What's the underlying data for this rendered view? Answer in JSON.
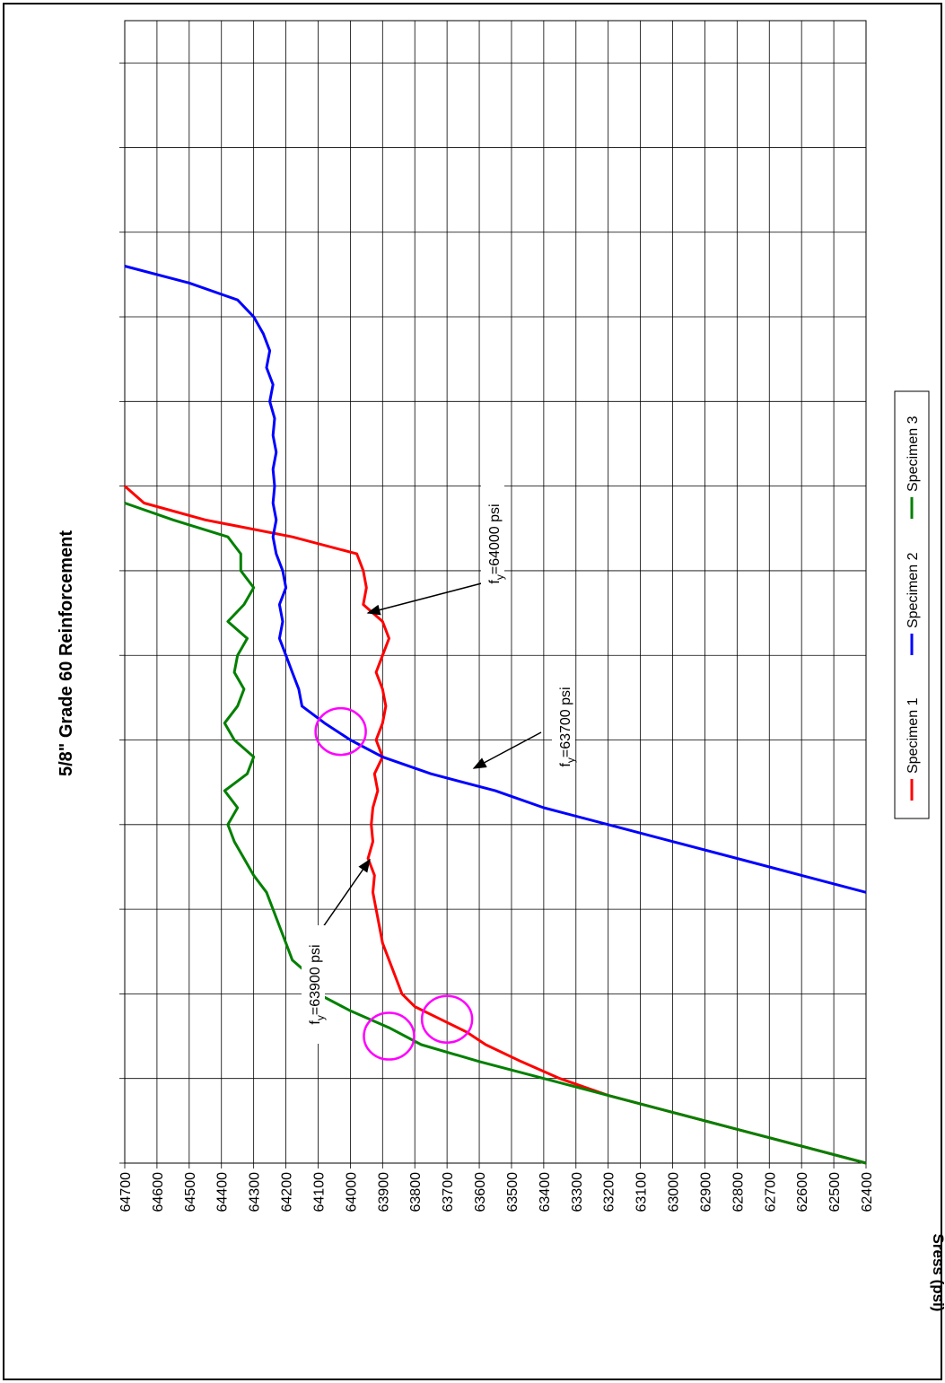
{
  "chart_data": {
    "type": "line",
    "title": "5/8\" Grade 60 Reinforcement",
    "ylabel": "Sress (psi)",
    "xlabel": "",
    "orientation": "rotated-90-clockwise",
    "ylim": [
      62400,
      64700
    ],
    "yticks": [
      64700,
      64600,
      64500,
      64400,
      64300,
      64200,
      64100,
      64000,
      63900,
      63800,
      63700,
      63600,
      63500,
      63400,
      63300,
      63200,
      63100,
      63000,
      62900,
      62800,
      62700,
      62600,
      62500,
      62400
    ],
    "grid": true,
    "legend_position": "bottom",
    "series": [
      {
        "name": "Specimen 1",
        "color": "#ff0000",
        "points": [
          [
            0.0,
            62400
          ],
          [
            0.2,
            62600
          ],
          [
            0.4,
            62800
          ],
          [
            0.6,
            63000
          ],
          [
            0.8,
            63200
          ],
          [
            1.0,
            63350
          ],
          [
            1.2,
            63470
          ],
          [
            1.4,
            63580
          ],
          [
            1.55,
            63640
          ],
          [
            1.7,
            63720
          ],
          [
            1.85,
            63800
          ],
          [
            2.0,
            63840
          ],
          [
            2.2,
            63860
          ],
          [
            2.4,
            63880
          ],
          [
            2.6,
            63900
          ],
          [
            2.8,
            63910
          ],
          [
            3.0,
            63920
          ],
          [
            3.2,
            63930
          ],
          [
            3.4,
            63925
          ],
          [
            3.6,
            63945
          ],
          [
            3.8,
            63930
          ],
          [
            4.0,
            63935
          ],
          [
            4.2,
            63930
          ],
          [
            4.4,
            63915
          ],
          [
            4.6,
            63925
          ],
          [
            4.8,
            63900
          ],
          [
            5.0,
            63920
          ],
          [
            5.2,
            63900
          ],
          [
            5.4,
            63890
          ],
          [
            5.6,
            63900
          ],
          [
            5.8,
            63920
          ],
          [
            6.0,
            63900
          ],
          [
            6.2,
            63880
          ],
          [
            6.4,
            63900
          ],
          [
            6.6,
            63960
          ],
          [
            6.8,
            63950
          ],
          [
            7.0,
            63960
          ],
          [
            7.2,
            63980
          ],
          [
            7.4,
            64180
          ],
          [
            7.6,
            64450
          ],
          [
            7.8,
            64640
          ],
          [
            8.0,
            64700
          ]
        ]
      },
      {
        "name": "Specimen 2",
        "color": "#0000ff",
        "points": [
          [
            3.2,
            62400
          ],
          [
            3.4,
            62600
          ],
          [
            3.6,
            62800
          ],
          [
            3.8,
            63000
          ],
          [
            4.0,
            63200
          ],
          [
            4.2,
            63400
          ],
          [
            4.4,
            63550
          ],
          [
            4.6,
            63750
          ],
          [
            4.8,
            63900
          ],
          [
            5.0,
            64000
          ],
          [
            5.2,
            64080
          ],
          [
            5.4,
            64150
          ],
          [
            5.6,
            64160
          ],
          [
            5.8,
            64180
          ],
          [
            6.0,
            64200
          ],
          [
            6.2,
            64220
          ],
          [
            6.4,
            64210
          ],
          [
            6.6,
            64220
          ],
          [
            6.8,
            64200
          ],
          [
            7.0,
            64210
          ],
          [
            7.2,
            64230
          ],
          [
            7.4,
            64240
          ],
          [
            7.6,
            64230
          ],
          [
            7.8,
            64240
          ],
          [
            8.0,
            64235
          ],
          [
            8.2,
            64240
          ],
          [
            8.4,
            64230
          ],
          [
            8.6,
            64240
          ],
          [
            8.8,
            64235
          ],
          [
            9.0,
            64250
          ],
          [
            9.2,
            64240
          ],
          [
            9.4,
            64260
          ],
          [
            9.6,
            64250
          ],
          [
            9.8,
            64270
          ],
          [
            10.0,
            64300
          ],
          [
            10.2,
            64350
          ],
          [
            10.4,
            64500
          ],
          [
            10.6,
            64700
          ]
        ]
      },
      {
        "name": "Specimen 3",
        "color": "#008000",
        "points": [
          [
            0.0,
            62400
          ],
          [
            0.2,
            62600
          ],
          [
            0.4,
            62800
          ],
          [
            0.6,
            63000
          ],
          [
            0.8,
            63200
          ],
          [
            1.0,
            63400
          ],
          [
            1.2,
            63600
          ],
          [
            1.4,
            63780
          ],
          [
            1.6,
            63880
          ],
          [
            1.8,
            64000
          ],
          [
            2.0,
            64100
          ],
          [
            2.2,
            64120
          ],
          [
            2.4,
            64180
          ],
          [
            2.6,
            64200
          ],
          [
            2.8,
            64220
          ],
          [
            3.0,
            64240
          ],
          [
            3.2,
            64260
          ],
          [
            3.4,
            64300
          ],
          [
            3.6,
            64330
          ],
          [
            3.8,
            64360
          ],
          [
            4.0,
            64380
          ],
          [
            4.2,
            64350
          ],
          [
            4.4,
            64390
          ],
          [
            4.6,
            64320
          ],
          [
            4.8,
            64300
          ],
          [
            5.0,
            64360
          ],
          [
            5.2,
            64390
          ],
          [
            5.4,
            64350
          ],
          [
            5.6,
            64330
          ],
          [
            5.8,
            64360
          ],
          [
            6.0,
            64350
          ],
          [
            6.2,
            64320
          ],
          [
            6.4,
            64380
          ],
          [
            6.6,
            64330
          ],
          [
            6.8,
            64300
          ],
          [
            7.0,
            64340
          ],
          [
            7.2,
            64340
          ],
          [
            7.4,
            64380
          ],
          [
            7.6,
            64550
          ],
          [
            7.8,
            64700
          ]
        ]
      }
    ],
    "annotations": [
      {
        "label": "f",
        "subscript": "y",
        "text": "=64000 psi",
        "series": "Specimen 2",
        "x": 5.1,
        "y": 64030
      },
      {
        "label": "f",
        "subscript": "y",
        "text": "=63700 psi",
        "series": "Specimen 1",
        "x": 1.7,
        "y": 63700
      },
      {
        "label": "f",
        "subscript": "y",
        "text": "=63900 psi",
        "series": "Specimen 3",
        "x": 1.5,
        "y": 63880
      }
    ]
  }
}
